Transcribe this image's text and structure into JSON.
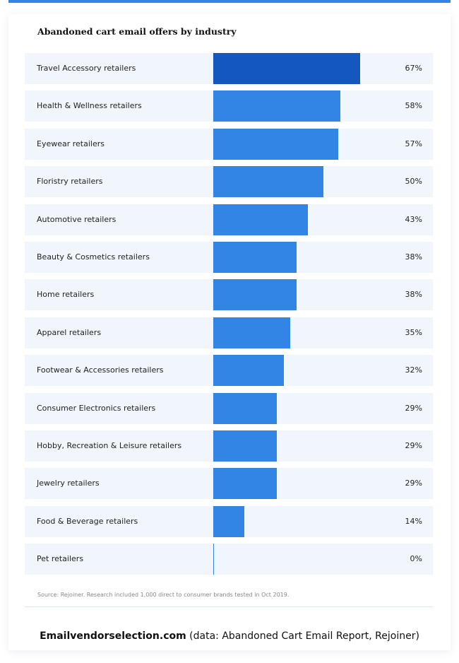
{
  "chart_data": {
    "type": "bar",
    "orientation": "horizontal",
    "title": "Abandoned cart email offers by industry",
    "categories": [
      "Travel Accessory retailers",
      "Health & Wellness retailers",
      "Eyewear retailers",
      "Floristry retailers",
      "Automotive retailers",
      "Beauty & Cosmetics retailers",
      "Home retailers",
      "Apparel retailers",
      "Footwear & Accessories retailers",
      "Consumer Electronics retailers",
      "Hobby, Recreation & Leisure retailers",
      "Jewelry retailers",
      "Food & Beverage retailers",
      "Pet retailers"
    ],
    "values": [
      67,
      58,
      57,
      50,
      43,
      38,
      38,
      35,
      32,
      29,
      29,
      29,
      14,
      0
    ],
    "value_labels": [
      "67%",
      "58%",
      "57%",
      "50%",
      "43%",
      "38%",
      "38%",
      "35%",
      "32%",
      "29%",
      "29%",
      "29%",
      "14%",
      "0%"
    ],
    "xlim": [
      0,
      100
    ],
    "grid": false,
    "colors": {
      "highlight": "#1457c0",
      "bar": "#3385e5",
      "row_bg": "#f1f6fd",
      "accent": "#3385e5"
    }
  },
  "source": "Source: Rejoiner. Research included 1,000 direct to consumer brands tested in Oct 2019.",
  "footer": {
    "brand": "Emailvendorselection.com",
    "note": " (data: Abandoned Cart Email Report, Rejoiner)"
  }
}
